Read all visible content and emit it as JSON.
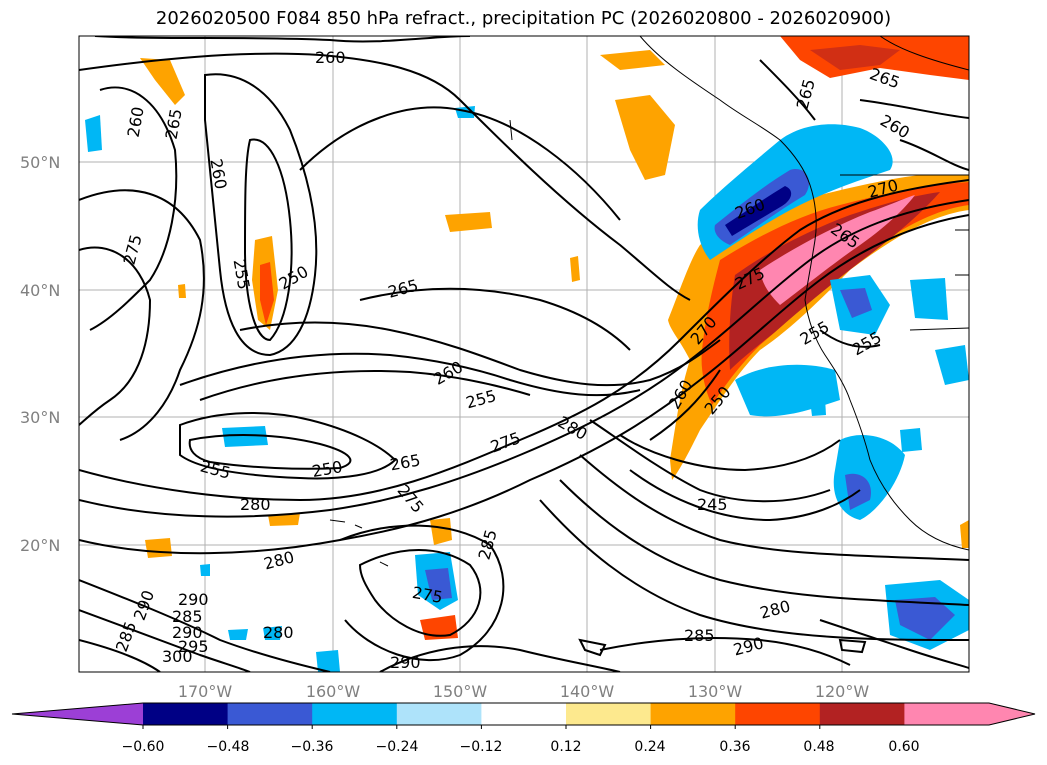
{
  "title": "2026020500 F084 850 hPa refract., precipitation PC (2026020800 - 2026020900)",
  "map": {
    "lat_labels": [
      "50°N",
      "40°N",
      "30°N",
      "20°N"
    ],
    "lon_labels": [
      "170°W",
      "160°W",
      "150°W",
      "140°W",
      "130°W",
      "120°W"
    ],
    "contour_labels": [
      "260",
      "265",
      "260",
      "260",
      "265",
      "275",
      "255",
      "250",
      "265",
      "260",
      "255",
      "275",
      "280",
      "265",
      "255",
      "250",
      "275",
      "285",
      "280",
      "275",
      "245",
      "270",
      "275",
      "265",
      "260",
      "250",
      "270",
      "260",
      "255",
      "280",
      "285",
      "290",
      "290",
      "300",
      "295",
      "285",
      "290",
      "280",
      "290",
      "280",
      "285",
      "290",
      "255",
      "265",
      "260"
    ]
  },
  "colorbar": {
    "ticks": [
      "−0.60",
      "−0.48",
      "−0.36",
      "−0.24",
      "−0.12",
      "0.12",
      "0.24",
      "0.36",
      "0.48",
      "0.60"
    ],
    "colors": [
      "#9c3fd6",
      "#000085",
      "#3a59d4",
      "#00b7f5",
      "#aee3fa",
      "#ffffff",
      "#fde98e",
      "#fea300",
      "#fe4500",
      "#b22222",
      "#ff86b0",
      "#ff86b0"
    ]
  }
}
